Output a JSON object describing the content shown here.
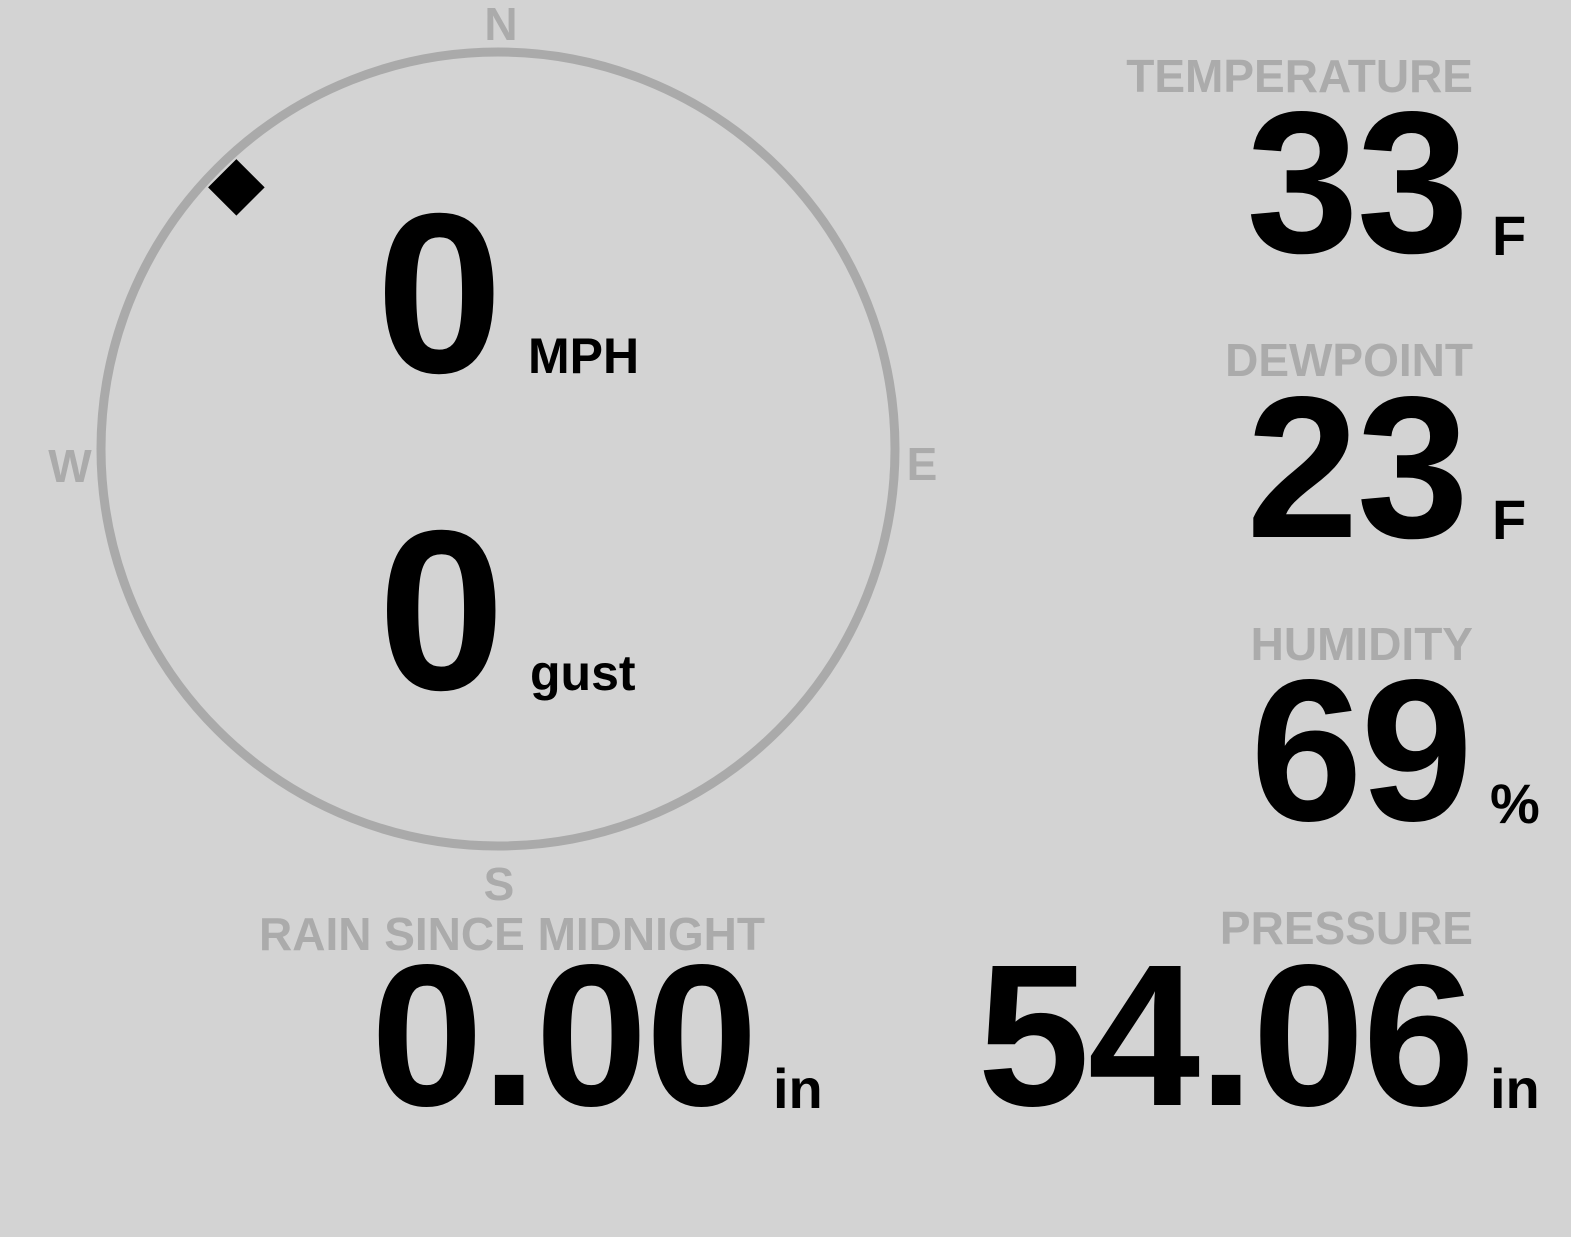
{
  "compass": {
    "north": "N",
    "south": "S",
    "east": "E",
    "west": "W",
    "wind_direction_deg": 315,
    "ring_color": "#aaaaaa"
  },
  "wind": {
    "speed": "0",
    "speed_unit": "MPH",
    "gust": "0",
    "gust_unit": "gust"
  },
  "temperature": {
    "label": "TEMPERATURE",
    "value": "33",
    "unit": "F"
  },
  "dewpoint": {
    "label": "DEWPOINT",
    "value": "23",
    "unit": "F"
  },
  "humidity": {
    "label": "HUMIDITY",
    "value": "69",
    "unit": "%"
  },
  "rain": {
    "label": "RAIN SINCE MIDNIGHT",
    "value": "0.00",
    "unit": "in"
  },
  "pressure": {
    "label": "PRESSURE",
    "value": "54.06",
    "unit": "in"
  }
}
